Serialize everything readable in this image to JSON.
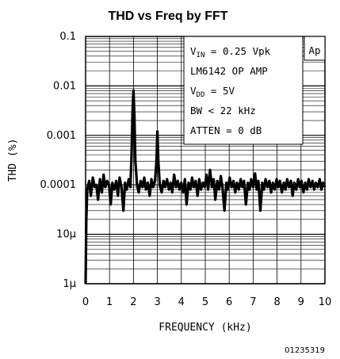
{
  "chart_data": {
    "type": "line",
    "title": "THD vs Freq by FFT",
    "xlabel": "FREQUENCY (kHz)",
    "ylabel": "THD (%)",
    "x_scale": "linear",
    "y_scale": "log",
    "xlim": [
      0,
      10
    ],
    "ylim": [
      1e-06,
      0.1
    ],
    "x_ticks": [
      "0",
      "1",
      "2",
      "3",
      "4",
      "5",
      "6",
      "7",
      "8",
      "9",
      "10"
    ],
    "y_ticks": [
      {
        "value": 0.1,
        "label": "0.1"
      },
      {
        "value": 0.01,
        "label": "0.01"
      },
      {
        "value": 0.001,
        "label": "0.001"
      },
      {
        "value": 0.0001,
        "label": "0.0001"
      },
      {
        "value": 1e-05,
        "label": "10μ"
      },
      {
        "value": 1e-06,
        "label": "1μ"
      }
    ],
    "grid": true,
    "annotations": [
      {
        "main": "V",
        "sub": "IN",
        "rest": " = 0.25 Vpk"
      },
      {
        "main": "LM6142 OP AMP",
        "sub": "",
        "rest": ""
      },
      {
        "main": "V",
        "sub": "DD",
        "rest": " = 5V"
      },
      {
        "main": "BW < 22 kHz",
        "sub": "",
        "rest": ""
      },
      {
        "main": "ATTEN = 0 dB",
        "sub": "",
        "rest": ""
      }
    ],
    "badge": "Ap",
    "figure_id": "01235319",
    "series": [
      {
        "color": "#000000",
        "points": [
          [
            0.0,
            1e-06
          ],
          [
            0.03,
            2e-05
          ],
          [
            0.07,
            8e-05
          ],
          [
            0.15,
            0.00012
          ],
          [
            0.22,
            6e-05
          ],
          [
            0.3,
            0.00014
          ],
          [
            0.38,
            9e-05
          ],
          [
            0.45,
            0.0001
          ],
          [
            0.52,
            5e-05
          ],
          [
            0.6,
            0.00013
          ],
          [
            0.68,
            7e-05
          ],
          [
            0.75,
            0.00016
          ],
          [
            0.82,
            9e-05
          ],
          [
            0.9,
            0.00012
          ],
          [
            0.98,
            0.0001
          ],
          [
            1.05,
            4e-05
          ],
          [
            1.12,
            0.00011
          ],
          [
            1.2,
            8e-05
          ],
          [
            1.28,
            0.00012
          ],
          [
            1.35,
            6e-05
          ],
          [
            1.42,
            0.00014
          ],
          [
            1.5,
            9e-05
          ],
          [
            1.58,
            3e-05
          ],
          [
            1.65,
            0.00011
          ],
          [
            1.72,
            8e-05
          ],
          [
            1.8,
            0.00013
          ],
          [
            1.87,
            9e-05
          ],
          [
            1.92,
            0.0004
          ],
          [
            1.96,
            0.003
          ],
          [
            2.0,
            0.008
          ],
          [
            2.04,
            0.0025
          ],
          [
            2.08,
            0.0003
          ],
          [
            2.15,
            0.0001
          ],
          [
            2.22,
            7e-05
          ],
          [
            2.3,
            0.00012
          ],
          [
            2.38,
            9e-05
          ],
          [
            2.45,
            0.00014
          ],
          [
            2.52,
            8e-05
          ],
          [
            2.6,
            0.00011
          ],
          [
            2.68,
            6e-05
          ],
          [
            2.75,
            0.00013
          ],
          [
            2.82,
            9e-05
          ],
          [
            2.9,
            0.00012
          ],
          [
            2.96,
            0.0003
          ],
          [
            3.0,
            0.0012
          ],
          [
            3.04,
            0.0003
          ],
          [
            3.1,
            0.0001
          ],
          [
            3.18,
            7e-05
          ],
          [
            3.25,
            0.00012
          ],
          [
            3.32,
            9e-05
          ],
          [
            3.4,
            0.00013
          ],
          [
            3.48,
            8e-05
          ],
          [
            3.55,
            0.00011
          ],
          [
            3.62,
            7e-05
          ],
          [
            3.7,
            0.00016
          ],
          [
            3.78,
            9e-05
          ],
          [
            3.85,
            0.00012
          ],
          [
            3.92,
            8e-05
          ],
          [
            4.0,
            0.00011
          ],
          [
            4.08,
            7e-05
          ],
          [
            4.15,
            0.00013
          ],
          [
            4.22,
            4e-05
          ],
          [
            4.3,
            0.00011
          ],
          [
            4.38,
            8e-05
          ],
          [
            4.45,
            0.00014
          ],
          [
            4.52,
            9e-05
          ],
          [
            4.6,
            0.00012
          ],
          [
            4.68,
            6e-05
          ],
          [
            4.75,
            0.00013
          ],
          [
            4.82,
            8e-05
          ],
          [
            4.9,
            0.00011
          ],
          [
            4.98,
            9e-05
          ],
          [
            5.05,
            0.00016
          ],
          [
            5.12,
            8e-05
          ],
          [
            5.2,
            0.0002
          ],
          [
            5.28,
            9e-05
          ],
          [
            5.35,
            0.00013
          ],
          [
            5.42,
            5e-05
          ],
          [
            5.5,
            0.00012
          ],
          [
            5.58,
            8e-05
          ],
          [
            5.65,
            0.00015
          ],
          [
            5.72,
            9e-05
          ],
          [
            5.8,
            3e-05
          ],
          [
            5.88,
            0.00011
          ],
          [
            5.95,
            8e-05
          ],
          [
            6.02,
            0.00014
          ],
          [
            6.1,
            9e-05
          ],
          [
            6.18,
            0.00012
          ],
          [
            6.25,
            7e-05
          ],
          [
            6.32,
            0.00011
          ],
          [
            6.4,
            8e-05
          ],
          [
            6.48,
            0.00013
          ],
          [
            6.55,
            9e-05
          ],
          [
            6.62,
            0.00012
          ],
          [
            6.7,
            4e-05
          ],
          [
            6.78,
            0.00011
          ],
          [
            6.85,
            8e-05
          ],
          [
            6.92,
            0.00013
          ],
          [
            7.0,
            9e-05
          ],
          [
            7.08,
            0.00017
          ],
          [
            7.15,
            8e-05
          ],
          [
            7.22,
            0.00012
          ],
          [
            7.3,
            3e-05
          ],
          [
            7.38,
            0.00011
          ],
          [
            7.45,
            8e-05
          ],
          [
            7.52,
            0.00013
          ],
          [
            7.6,
            9e-05
          ],
          [
            7.68,
            0.00012
          ],
          [
            7.75,
            7e-05
          ],
          [
            7.82,
            0.00011
          ],
          [
            7.9,
            8e-05
          ],
          [
            7.98,
            0.00013
          ],
          [
            8.05,
            9e-05
          ],
          [
            8.12,
            0.00012
          ],
          [
            8.2,
            7e-05
          ],
          [
            8.28,
            0.00011
          ],
          [
            8.35,
            8e-05
          ],
          [
            8.42,
            0.00013
          ],
          [
            8.5,
            9e-05
          ],
          [
            8.58,
            0.00012
          ],
          [
            8.65,
            6e-05
          ],
          [
            8.72,
            0.00011
          ],
          [
            8.8,
            8e-05
          ],
          [
            8.88,
            0.00013
          ],
          [
            8.95,
            9e-05
          ],
          [
            9.02,
            0.00012
          ],
          [
            9.1,
            7e-05
          ],
          [
            9.18,
            0.00011
          ],
          [
            9.25,
            8e-05
          ],
          [
            9.32,
            0.00013
          ],
          [
            9.4,
            9e-05
          ],
          [
            9.48,
            0.00012
          ],
          [
            9.55,
            8e-05
          ],
          [
            9.62,
            0.00011
          ],
          [
            9.7,
            9e-05
          ],
          [
            9.78,
            0.00013
          ],
          [
            9.85,
            8e-05
          ],
          [
            9.92,
            0.00011
          ],
          [
            10.0,
            9e-05
          ]
        ]
      }
    ]
  }
}
